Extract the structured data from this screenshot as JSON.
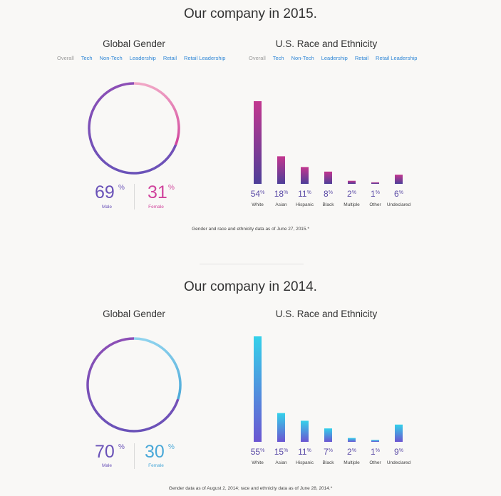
{
  "colors": {
    "male": "#6a52b8",
    "female_2015": "#d0439c",
    "female_2014": "#4aa8d8",
    "link": "#2f86d6",
    "active_filter": "#9a9a9a"
  },
  "filters": {
    "gender": [
      "Overall",
      "Tech",
      "Non-Tech",
      "Leadership",
      "Retail",
      "Retail Leadership"
    ],
    "race": [
      "Overall",
      "Tech",
      "Non-Tech",
      "Leadership",
      "Retail",
      "Retail Leadership"
    ],
    "active": "Overall"
  },
  "y2015": {
    "title": "Our company in 2015.",
    "gender_title": "Global Gender",
    "race_title": "U.S. Race and Ethnicity",
    "male_value": "69",
    "female_value": "31",
    "pct": "%",
    "male_label": "Male",
    "female_label": "Female",
    "note": "Gender and race and ethnicity data as of June 27, 2015.*"
  },
  "y2014": {
    "title": "Our company in 2014.",
    "gender_title": "Global Gender",
    "race_title": "U.S. Race and Ethnicity",
    "male_value": "70",
    "female_value": "30",
    "pct": "%",
    "male_label": "Male",
    "female_label": "Female",
    "note": "Gender data as of August 2, 2014; race and ethnicity data as of June 28, 2014.*"
  },
  "chart_data": [
    {
      "type": "pie",
      "title": "Global Gender",
      "categories": [
        "Male",
        "Female"
      ],
      "values": [
        69,
        31
      ],
      "colors": [
        "#6a52b8",
        "#d0439c"
      ]
    },
    {
      "type": "bar",
      "title": "U.S. Race and Ethnicity",
      "categories": [
        "White",
        "Asian",
        "Hispanic",
        "Black",
        "Multiple",
        "Other",
        "Undeclared"
      ],
      "values": [
        54,
        18,
        11,
        8,
        2,
        1,
        6
      ],
      "gradient": [
        "#c3378f",
        "#4e3f98"
      ]
    },
    {
      "type": "pie",
      "title": "Global Gender",
      "categories": [
        "Male",
        "Female"
      ],
      "values": [
        70,
        30
      ],
      "colors": [
        "#6a52b8",
        "#4aa8d8"
      ]
    },
    {
      "type": "bar",
      "title": "U.S. Race and Ethnicity",
      "categories": [
        "White",
        "Asian",
        "Hispanic",
        "Black",
        "Multiple",
        "Other",
        "Undeclared"
      ],
      "values": [
        55,
        15,
        11,
        7,
        2,
        1,
        9
      ],
      "gradient": [
        "#34d1ea",
        "#6b55d2"
      ]
    }
  ]
}
